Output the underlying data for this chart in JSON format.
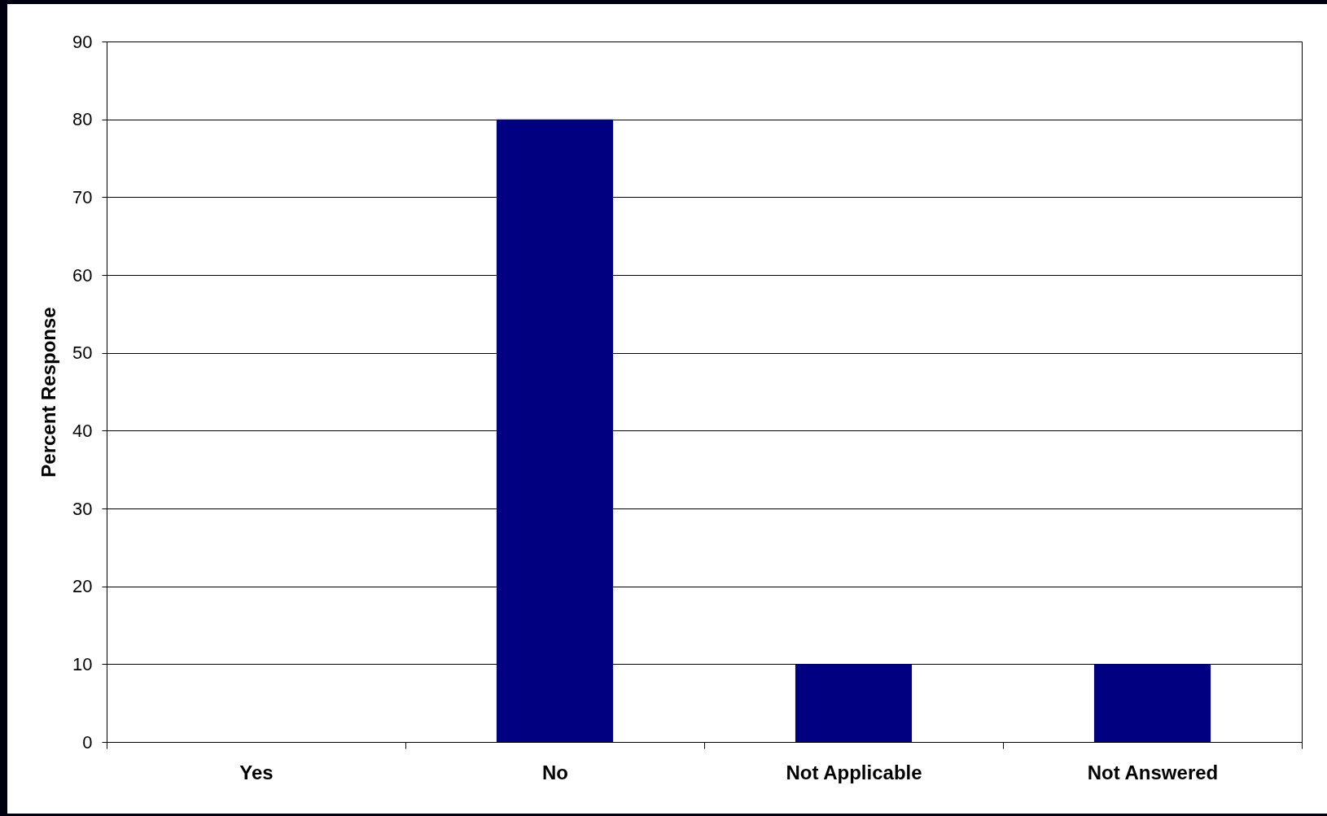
{
  "chart_data": {
    "type": "bar",
    "ylabel": "Percent Response",
    "categories": [
      "Yes",
      "No",
      "Not Applicable",
      "Not Answered"
    ],
    "values": [
      0,
      80,
      10,
      10
    ],
    "color": "#000080",
    "ylim": [
      0,
      90
    ],
    "yticks": [
      0,
      10,
      20,
      30,
      40,
      50,
      60,
      70,
      80,
      90
    ],
    "grid": "y"
  }
}
